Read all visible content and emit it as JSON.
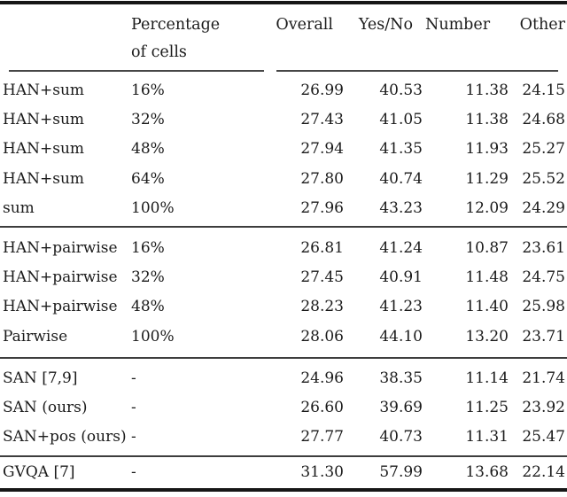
{
  "table": {
    "header": {
      "percentage_line1": "Percentage",
      "percentage_line2": "of cells",
      "overall": "Overall",
      "yesno": "Yes/No",
      "number": "Number",
      "other": "Other"
    },
    "sections": [
      {
        "rows": [
          {
            "model": "HAN+sum",
            "percentage": "16%",
            "overall": "26.99",
            "yesno": "40.53",
            "number": "11.38",
            "other": "24.15"
          },
          {
            "model": "HAN+sum",
            "percentage": "32%",
            "overall": "27.43",
            "yesno": "41.05",
            "number": "11.38",
            "other": "24.68"
          },
          {
            "model": "HAN+sum",
            "percentage": "48%",
            "overall": "27.94",
            "yesno": "41.35",
            "number": "11.93",
            "other": "25.27"
          },
          {
            "model": "HAN+sum",
            "percentage": "64%",
            "overall": "27.80",
            "yesno": "40.74",
            "number": "11.29",
            "other": "25.52"
          },
          {
            "model": "sum",
            "percentage": "100%",
            "overall": "27.96",
            "yesno": "43.23",
            "number": "12.09",
            "other": "24.29"
          }
        ]
      },
      {
        "rows": [
          {
            "model": "HAN+pairwise",
            "percentage": "16%",
            "overall": "26.81",
            "yesno": "41.24",
            "number": "10.87",
            "other": "23.61"
          },
          {
            "model": "HAN+pairwise",
            "percentage": "32%",
            "overall": "27.45",
            "yesno": "40.91",
            "number": "11.48",
            "other": "24.75"
          },
          {
            "model": "HAN+pairwise",
            "percentage": "48%",
            "overall": "28.23",
            "yesno": "41.23",
            "number": "11.40",
            "other": "25.98"
          },
          {
            "model": "Pairwise",
            "percentage": "100%",
            "overall": "28.06",
            "yesno": "44.10",
            "number": "13.20",
            "other": "23.71"
          }
        ]
      },
      {
        "rows": [
          {
            "model": "SAN [7,9]",
            "percentage": "-",
            "overall": "24.96",
            "yesno": "38.35",
            "number": "11.14",
            "other": "21.74"
          },
          {
            "model": "SAN (ours)",
            "percentage": "-",
            "overall": "26.60",
            "yesno": "39.69",
            "number": "11.25",
            "other": "23.92"
          },
          {
            "model": "SAN+pos (ours)",
            "percentage": "-",
            "overall": "27.77",
            "yesno": "40.73",
            "number": "11.31",
            "other": "25.47"
          }
        ]
      },
      {
        "rows": [
          {
            "model": "GVQA [7]",
            "percentage": "-",
            "overall": "31.30",
            "yesno": "57.99",
            "number": "13.68",
            "other": "22.14"
          }
        ]
      }
    ]
  }
}
